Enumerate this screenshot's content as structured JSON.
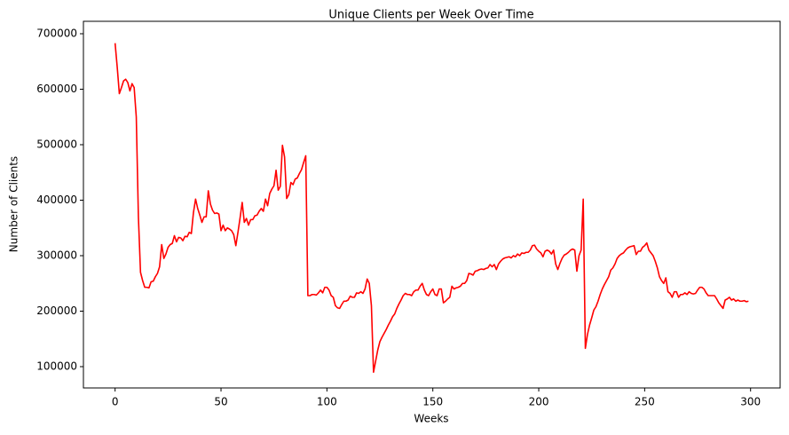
{
  "chart_data": {
    "type": "line",
    "title": "Unique Clients per Week Over Time",
    "x_label": "Weeks",
    "y_label": "Number of Clients",
    "color": "#ff0000",
    "xlim": [
      -14.95,
      313.95
    ],
    "ylim": [
      61600,
      722400
    ],
    "xticks": [
      0,
      50,
      100,
      150,
      200,
      250,
      300
    ],
    "yticks": [
      100000,
      200000,
      300000,
      400000,
      500000,
      600000,
      700000
    ],
    "grid": false,
    "x": [
      0,
      1,
      2,
      3,
      4,
      5,
      6,
      7,
      8,
      9,
      10,
      11,
      12,
      13,
      14,
      15,
      16,
      17,
      18,
      19,
      20,
      21,
      22,
      23,
      24,
      25,
      26,
      27,
      28,
      29,
      30,
      31,
      32,
      33,
      34,
      35,
      36,
      37,
      38,
      39,
      40,
      41,
      42,
      43,
      44,
      45,
      46,
      47,
      48,
      49,
      50,
      51,
      52,
      53,
      54,
      55,
      56,
      57,
      58,
      59,
      60,
      61,
      62,
      63,
      64,
      65,
      66,
      67,
      68,
      69,
      70,
      71,
      72,
      73,
      74,
      75,
      76,
      77,
      78,
      79,
      80,
      81,
      82,
      83,
      84,
      85,
      86,
      87,
      88,
      89,
      90,
      91,
      92,
      93,
      94,
      95,
      96,
      97,
      98,
      99,
      100,
      101,
      102,
      103,
      104,
      105,
      106,
      107,
      108,
      109,
      110,
      111,
      112,
      113,
      114,
      115,
      116,
      117,
      118,
      119,
      120,
      121,
      122,
      123,
      124,
      125,
      126,
      127,
      128,
      129,
      130,
      131,
      132,
      133,
      134,
      135,
      136,
      137,
      138,
      139,
      140,
      141,
      142,
      143,
      144,
      145,
      146,
      147,
      148,
      149,
      150,
      151,
      152,
      153,
      154,
      155,
      156,
      157,
      158,
      159,
      160,
      161,
      162,
      163,
      164,
      165,
      166,
      167,
      168,
      169,
      170,
      171,
      172,
      173,
      174,
      175,
      176,
      177,
      178,
      179,
      180,
      181,
      182,
      183,
      184,
      185,
      186,
      187,
      188,
      189,
      190,
      191,
      192,
      193,
      194,
      195,
      196,
      197,
      198,
      199,
      200,
      201,
      202,
      203,
      204,
      205,
      206,
      207,
      208,
      209,
      210,
      211,
      212,
      213,
      214,
      215,
      216,
      217,
      218,
      219,
      220,
      221,
      222,
      223,
      224,
      225,
      226,
      227,
      228,
      229,
      230,
      231,
      232,
      233,
      234,
      235,
      236,
      237,
      238,
      239,
      240,
      241,
      242,
      243,
      244,
      245,
      246,
      247,
      248,
      249,
      250,
      251,
      252,
      253,
      254,
      255,
      256,
      257,
      258,
      259,
      260,
      261,
      262,
      263,
      264,
      265,
      266,
      267,
      268,
      269,
      270,
      271,
      272,
      273,
      274,
      275,
      276,
      277,
      278,
      279,
      280,
      281,
      282,
      283,
      284,
      285,
      286,
      287,
      288,
      289,
      290,
      291,
      292,
      293,
      294,
      295,
      296,
      297,
      298,
      299
    ],
    "values": [
      683000,
      640000,
      592000,
      603000,
      615000,
      618000,
      612000,
      597000,
      610000,
      603000,
      550000,
      370000,
      270000,
      255000,
      243000,
      243000,
      242000,
      253000,
      254000,
      262000,
      268000,
      280000,
      320000,
      295000,
      303000,
      315000,
      320000,
      322000,
      336000,
      325000,
      333000,
      332000,
      327000,
      335000,
      334000,
      342000,
      340000,
      378000,
      402000,
      385000,
      373000,
      360000,
      370000,
      370000,
      417000,
      393000,
      382000,
      376000,
      377000,
      375000,
      345000,
      355000,
      345000,
      350000,
      348000,
      345000,
      338000,
      318000,
      342000,
      368000,
      396000,
      360000,
      367000,
      355000,
      365000,
      365000,
      372000,
      373000,
      380000,
      385000,
      380000,
      402000,
      390000,
      412000,
      420000,
      426000,
      454000,
      418000,
      425000,
      499000,
      478000,
      403000,
      410000,
      432000,
      428000,
      438000,
      440000,
      448000,
      455000,
      468000,
      480000,
      228000,
      228000,
      230000,
      230000,
      229000,
      233000,
      238000,
      233000,
      243000,
      243000,
      238000,
      228000,
      225000,
      210000,
      206000,
      205000,
      212000,
      218000,
      218000,
      220000,
      227000,
      225000,
      225000,
      233000,
      232000,
      235000,
      232000,
      240000,
      258000,
      250000,
      210000,
      90000,
      110000,
      130000,
      145000,
      153000,
      160000,
      167000,
      175000,
      182000,
      190000,
      195000,
      205000,
      213000,
      220000,
      228000,
      232000,
      230000,
      230000,
      228000,
      235000,
      238000,
      238000,
      245000,
      250000,
      238000,
      230000,
      228000,
      235000,
      240000,
      230000,
      228000,
      240000,
      240000,
      215000,
      218000,
      222000,
      225000,
      245000,
      240000,
      242000,
      243000,
      245000,
      250000,
      250000,
      255000,
      268000,
      267000,
      265000,
      272000,
      273000,
      275000,
      276000,
      275000,
      277000,
      278000,
      284000,
      280000,
      284000,
      275000,
      285000,
      290000,
      294000,
      296000,
      297000,
      298000,
      296000,
      300000,
      298000,
      303000,
      300000,
      305000,
      304000,
      306000,
      306000,
      310000,
      318000,
      319000,
      312000,
      308000,
      305000,
      298000,
      308000,
      310000,
      308000,
      303000,
      310000,
      285000,
      275000,
      286000,
      295000,
      301000,
      303000,
      306000,
      310000,
      312000,
      310000,
      272000,
      300000,
      310000,
      402000,
      133000,
      158000,
      175000,
      188000,
      202000,
      208000,
      218000,
      230000,
      240000,
      248000,
      255000,
      262000,
      274000,
      278000,
      285000,
      295000,
      300000,
      303000,
      305000,
      310000,
      314000,
      316000,
      317000,
      318000,
      302000,
      308000,
      308000,
      315000,
      318000,
      323000,
      310000,
      305000,
      300000,
      290000,
      278000,
      262000,
      255000,
      250000,
      260000,
      235000,
      232000,
      225000,
      235000,
      235000,
      225000,
      230000,
      230000,
      233000,
      230000,
      235000,
      232000,
      231000,
      232000,
      238000,
      243000,
      243000,
      240000,
      233000,
      228000,
      228000,
      228000,
      228000,
      222000,
      215000,
      210000,
      205000,
      220000,
      222000,
      225000,
      220000,
      222000,
      218000,
      220000,
      218000,
      218000,
      219000,
      217000,
      218000
    ]
  }
}
